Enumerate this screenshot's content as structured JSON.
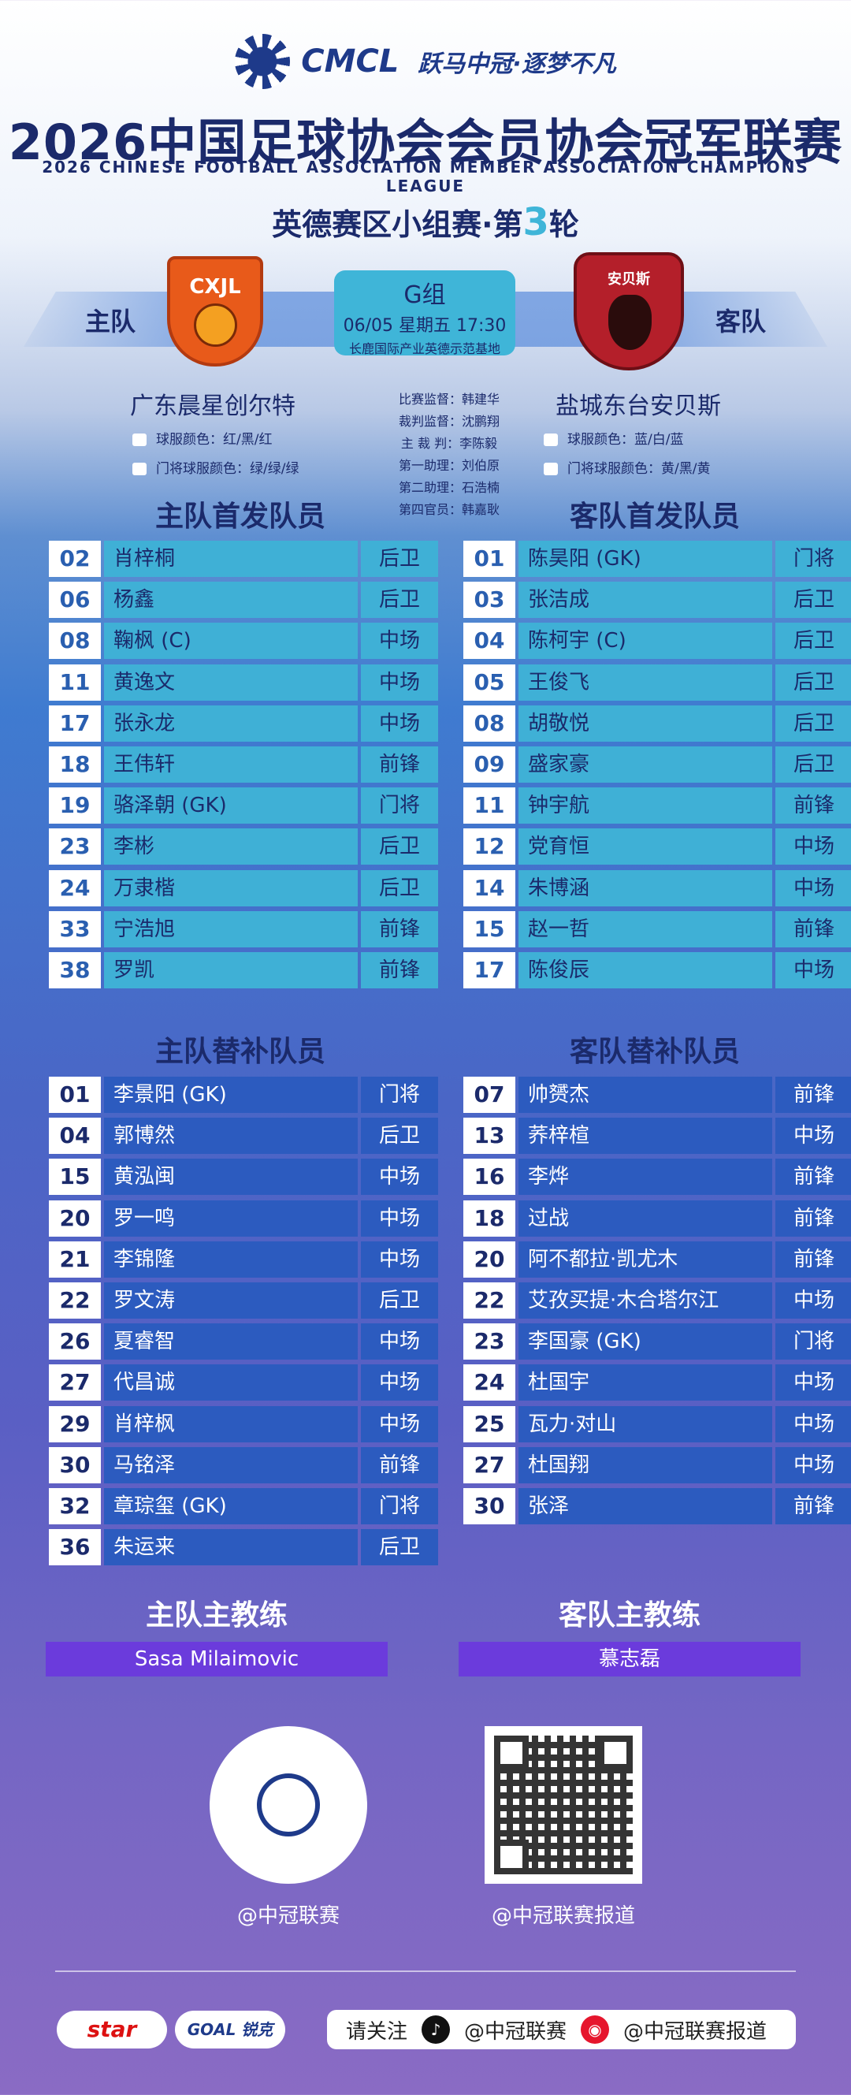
{
  "header": {
    "logo_text": "CMCL",
    "slogan": "跃马中冠·逐梦不凡",
    "title_cn": "2026中国足球协会会员协会冠军联赛",
    "title_en": "2026 CHINESE FOOTBALL ASSOCIATION MEMBER ASSOCIATION CHAMPIONS LEAGUE",
    "round_prefix": "英德赛区小组赛·第",
    "round_num": "3",
    "round_suffix": "轮"
  },
  "match": {
    "home_label": "主队",
    "away_label": "客队",
    "home_badge_text": "CXJL",
    "away_badge_text": "安贝斯",
    "group": "G组",
    "datetime": "06/05 星期五 17:30",
    "venue": "长鹿国际产业英德示范基地",
    "home_team": "广东晨星创尔特",
    "away_team": "盐城东台安贝斯",
    "home_kit": "球服颜色：红/黑/红",
    "home_gk_kit": "门将球服颜色：绿/绿/绿",
    "away_kit": "球服颜色：蓝/白/蓝",
    "away_gk_kit": "门将球服颜色：黄/黑/黄",
    "officials": [
      "比赛监督：韩建华",
      "裁判监督：沈鹏翔",
      "主 裁 判：李陈毅",
      "第一助理：刘伯原",
      "第二助理：石浩楠",
      "第四官员：韩嘉耿"
    ]
  },
  "sections": {
    "home_starters": "主队首发队员",
    "away_starters": "客队首发队员",
    "home_subs": "主队替补队员",
    "away_subs": "客队替补队员",
    "home_coach": "主队主教练",
    "away_coach": "客队主教练"
  },
  "home_starters": [
    {
      "num": "02",
      "name": "肖梓桐",
      "pos": "后卫"
    },
    {
      "num": "06",
      "name": "杨鑫",
      "pos": "后卫"
    },
    {
      "num": "08",
      "name": "鞠枫 (C)",
      "pos": "中场"
    },
    {
      "num": "11",
      "name": "黄逸文",
      "pos": "中场"
    },
    {
      "num": "17",
      "name": "张永龙",
      "pos": "中场"
    },
    {
      "num": "18",
      "name": "王伟轩",
      "pos": "前锋"
    },
    {
      "num": "19",
      "name": "骆泽朝 (GK)",
      "pos": "门将"
    },
    {
      "num": "23",
      "name": "李彬",
      "pos": "后卫"
    },
    {
      "num": "24",
      "name": "万隶楷",
      "pos": "后卫"
    },
    {
      "num": "33",
      "name": "宁浩旭",
      "pos": "前锋"
    },
    {
      "num": "38",
      "name": "罗凯",
      "pos": "前锋"
    }
  ],
  "away_starters": [
    {
      "num": "01",
      "name": "陈昊阳 (GK)",
      "pos": "门将"
    },
    {
      "num": "03",
      "name": "张洁成",
      "pos": "后卫"
    },
    {
      "num": "04",
      "name": "陈柯宇 (C)",
      "pos": "后卫"
    },
    {
      "num": "05",
      "name": "王俊飞",
      "pos": "后卫"
    },
    {
      "num": "08",
      "name": "胡敬悦",
      "pos": "后卫"
    },
    {
      "num": "09",
      "name": "盛家豪",
      "pos": "后卫"
    },
    {
      "num": "11",
      "name": "钟宇航",
      "pos": "前锋"
    },
    {
      "num": "12",
      "name": "党育恒",
      "pos": "中场"
    },
    {
      "num": "14",
      "name": "朱博涵",
      "pos": "中场"
    },
    {
      "num": "15",
      "name": "赵一哲",
      "pos": "前锋"
    },
    {
      "num": "17",
      "name": "陈俊辰",
      "pos": "中场"
    }
  ],
  "home_subs": [
    {
      "num": "01",
      "name": "李景阳 (GK)",
      "pos": "门将"
    },
    {
      "num": "04",
      "name": "郭博然",
      "pos": "后卫"
    },
    {
      "num": "15",
      "name": "黄泓闽",
      "pos": "中场"
    },
    {
      "num": "20",
      "name": "罗一鸣",
      "pos": "中场"
    },
    {
      "num": "21",
      "name": "李锦隆",
      "pos": "中场"
    },
    {
      "num": "22",
      "name": "罗文涛",
      "pos": "后卫"
    },
    {
      "num": "26",
      "name": "夏睿智",
      "pos": "中场"
    },
    {
      "num": "27",
      "name": "代昌诚",
      "pos": "中场"
    },
    {
      "num": "29",
      "name": "肖梓枫",
      "pos": "中场"
    },
    {
      "num": "30",
      "name": "马铭泽",
      "pos": "前锋"
    },
    {
      "num": "32",
      "name": "章琮玺 (GK)",
      "pos": "门将"
    },
    {
      "num": "36",
      "name": "朱运来",
      "pos": "后卫"
    }
  ],
  "away_subs": [
    {
      "num": "07",
      "name": "帅赟杰",
      "pos": "前锋"
    },
    {
      "num": "13",
      "name": "荞梓楦",
      "pos": "中场"
    },
    {
      "num": "16",
      "name": "李烨",
      "pos": "前锋"
    },
    {
      "num": "18",
      "name": "过战",
      "pos": "前锋"
    },
    {
      "num": "20",
      "name": "阿不都拉·凯尤木",
      "pos": "前锋"
    },
    {
      "num": "22",
      "name": "艾孜买提·木合塔尔江",
      "pos": "中场"
    },
    {
      "num": "23",
      "name": "李国豪 (GK)",
      "pos": "门将"
    },
    {
      "num": "24",
      "name": "杜国宇",
      "pos": "中场"
    },
    {
      "num": "25",
      "name": "瓦力·对山",
      "pos": "中场"
    },
    {
      "num": "27",
      "name": "杜国翔",
      "pos": "中场"
    },
    {
      "num": "30",
      "name": "张泽",
      "pos": "前锋"
    }
  ],
  "coaches": {
    "home": "Sasa Milaimovic",
    "away": "慕志磊"
  },
  "footer": {
    "qr1_caption": "@中冠联赛",
    "qr2_caption": "@中冠联赛报道",
    "brand1": "star",
    "brand2": "GOAL 锐克",
    "follow_label": "请关注",
    "follow_douyin": "@中冠联赛",
    "follow_weibo": "@中冠联赛报道"
  },
  "colors": {
    "starter_cell": "#3fb0d6",
    "sub_cell": "#2c5bbf",
    "coach_bar": "#6b3bdc",
    "round_num": "#3fb5d8"
  }
}
